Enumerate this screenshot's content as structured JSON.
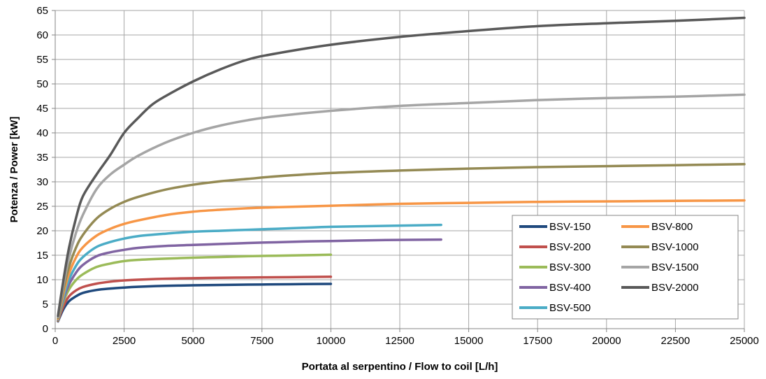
{
  "chart_data": {
    "type": "line",
    "title": "",
    "xlabel": "Portata al serpentino / Flow to coil [L/h]",
    "ylabel": "Potenza / Power [kW]",
    "xlim": [
      0,
      25000
    ],
    "ylim": [
      0,
      65
    ],
    "x_ticks": [
      0,
      2500,
      5000,
      7500,
      10000,
      12500,
      15000,
      17500,
      20000,
      22500,
      25000
    ],
    "y_ticks": [
      0,
      5,
      10,
      15,
      20,
      25,
      30,
      35,
      40,
      45,
      50,
      55,
      60,
      65
    ],
    "grid": true,
    "legend_position": "bottom-right",
    "legend_columns": 2,
    "series": [
      {
        "name": "BSV-150",
        "color": "#1f497d",
        "points": [
          [
            100,
            1.5
          ],
          [
            300,
            4.0
          ],
          [
            500,
            5.6
          ],
          [
            750,
            6.6
          ],
          [
            1000,
            7.3
          ],
          [
            1500,
            7.9
          ],
          [
            2000,
            8.2
          ],
          [
            2500,
            8.4
          ],
          [
            3000,
            8.55
          ],
          [
            4000,
            8.75
          ],
          [
            5000,
            8.85
          ],
          [
            6000,
            8.93
          ],
          [
            7000,
            9.0
          ],
          [
            8000,
            9.05
          ],
          [
            9000,
            9.1
          ],
          [
            10000,
            9.15
          ]
        ]
      },
      {
        "name": "BSV-200",
        "color": "#c0504d",
        "points": [
          [
            100,
            1.6
          ],
          [
            300,
            4.6
          ],
          [
            500,
            6.6
          ],
          [
            750,
            7.8
          ],
          [
            1000,
            8.5
          ],
          [
            1500,
            9.2
          ],
          [
            2000,
            9.6
          ],
          [
            2500,
            9.85
          ],
          [
            3000,
            10.0
          ],
          [
            4000,
            10.2
          ],
          [
            5000,
            10.3
          ],
          [
            6000,
            10.4
          ],
          [
            7000,
            10.45
          ],
          [
            8000,
            10.5
          ],
          [
            9000,
            10.55
          ],
          [
            10000,
            10.6
          ]
        ]
      },
      {
        "name": "BSV-300",
        "color": "#9bbb59",
        "points": [
          [
            100,
            1.7
          ],
          [
            300,
            5.5
          ],
          [
            500,
            8.0
          ],
          [
            750,
            9.9
          ],
          [
            1000,
            11.1
          ],
          [
            1500,
            12.6
          ],
          [
            2000,
            13.3
          ],
          [
            2500,
            13.8
          ],
          [
            3000,
            14.05
          ],
          [
            4000,
            14.3
          ],
          [
            5000,
            14.5
          ],
          [
            6000,
            14.65
          ],
          [
            7000,
            14.8
          ],
          [
            8000,
            14.9
          ],
          [
            9000,
            15.0
          ],
          [
            10000,
            15.1
          ]
        ]
      },
      {
        "name": "BSV-400",
        "color": "#8064a2",
        "points": [
          [
            100,
            1.8
          ],
          [
            300,
            6.0
          ],
          [
            500,
            9.0
          ],
          [
            750,
            11.4
          ],
          [
            1000,
            13.0
          ],
          [
            1500,
            14.8
          ],
          [
            2000,
            15.6
          ],
          [
            2500,
            16.1
          ],
          [
            3000,
            16.5
          ],
          [
            4000,
            16.9
          ],
          [
            5000,
            17.1
          ],
          [
            6000,
            17.3
          ],
          [
            7000,
            17.5
          ],
          [
            8000,
            17.65
          ],
          [
            9000,
            17.8
          ],
          [
            10000,
            17.9
          ],
          [
            12000,
            18.1
          ],
          [
            14000,
            18.2
          ]
        ]
      },
      {
        "name": "BSV-500",
        "color": "#4bacc6",
        "points": [
          [
            100,
            1.9
          ],
          [
            300,
            6.5
          ],
          [
            500,
            10.0
          ],
          [
            750,
            12.8
          ],
          [
            1000,
            14.6
          ],
          [
            1500,
            16.7
          ],
          [
            2000,
            17.7
          ],
          [
            2500,
            18.4
          ],
          [
            3000,
            18.9
          ],
          [
            4000,
            19.4
          ],
          [
            5000,
            19.8
          ],
          [
            6000,
            20.0
          ],
          [
            7000,
            20.2
          ],
          [
            8000,
            20.4
          ],
          [
            9000,
            20.6
          ],
          [
            10000,
            20.8
          ],
          [
            12000,
            21.0
          ],
          [
            14000,
            21.2
          ]
        ]
      },
      {
        "name": "BSV-800",
        "color": "#f79646",
        "points": [
          [
            100,
            2.0
          ],
          [
            300,
            7.2
          ],
          [
            500,
            11.2
          ],
          [
            750,
            14.5
          ],
          [
            1000,
            16.6
          ],
          [
            1500,
            19.0
          ],
          [
            2000,
            20.4
          ],
          [
            2500,
            21.4
          ],
          [
            3000,
            22.1
          ],
          [
            4000,
            23.2
          ],
          [
            5000,
            23.9
          ],
          [
            6000,
            24.3
          ],
          [
            7000,
            24.6
          ],
          [
            8000,
            24.8
          ],
          [
            10000,
            25.1
          ],
          [
            12500,
            25.5
          ],
          [
            15000,
            25.7
          ],
          [
            17500,
            25.9
          ],
          [
            20000,
            26.0
          ],
          [
            22500,
            26.1
          ],
          [
            25000,
            26.2
          ]
        ]
      },
      {
        "name": "BSV-1000",
        "color": "#948a54",
        "points": [
          [
            100,
            2.2
          ],
          [
            300,
            8.0
          ],
          [
            500,
            12.6
          ],
          [
            750,
            16.5
          ],
          [
            1000,
            19.1
          ],
          [
            1500,
            22.5
          ],
          [
            2000,
            24.5
          ],
          [
            2500,
            25.9
          ],
          [
            3000,
            26.9
          ],
          [
            4000,
            28.4
          ],
          [
            5000,
            29.4
          ],
          [
            6000,
            30.1
          ],
          [
            7000,
            30.6
          ],
          [
            8000,
            31.1
          ],
          [
            10000,
            31.8
          ],
          [
            12500,
            32.3
          ],
          [
            15000,
            32.7
          ],
          [
            17500,
            33.0
          ],
          [
            20000,
            33.2
          ],
          [
            22500,
            33.4
          ],
          [
            25000,
            33.6
          ]
        ]
      },
      {
        "name": "BSV-1500",
        "color": "#a5a5a5",
        "points": [
          [
            100,
            2.4
          ],
          [
            300,
            9.0
          ],
          [
            500,
            14.5
          ],
          [
            750,
            19.5
          ],
          [
            1000,
            23.2
          ],
          [
            1500,
            28.5
          ],
          [
            2000,
            31.5
          ],
          [
            2500,
            33.5
          ],
          [
            3000,
            35.3
          ],
          [
            4000,
            38.0
          ],
          [
            5000,
            40.0
          ],
          [
            6000,
            41.5
          ],
          [
            7000,
            42.6
          ],
          [
            8000,
            43.4
          ],
          [
            10000,
            44.5
          ],
          [
            12500,
            45.5
          ],
          [
            15000,
            46.1
          ],
          [
            17500,
            46.7
          ],
          [
            20000,
            47.1
          ],
          [
            22500,
            47.4
          ],
          [
            25000,
            47.8
          ]
        ]
      },
      {
        "name": "BSV-2000",
        "color": "#595959",
        "points": [
          [
            100,
            2.6
          ],
          [
            300,
            10.0
          ],
          [
            500,
            16.5
          ],
          [
            750,
            22.5
          ],
          [
            1000,
            27.0
          ],
          [
            1500,
            31.5
          ],
          [
            2000,
            35.5
          ],
          [
            2500,
            40.0
          ],
          [
            3000,
            43.0
          ],
          [
            3500,
            45.7
          ],
          [
            4000,
            47.5
          ],
          [
            5000,
            50.5
          ],
          [
            6000,
            53.0
          ],
          [
            7000,
            55.0
          ],
          [
            8000,
            56.2
          ],
          [
            10000,
            58.0
          ],
          [
            12500,
            59.6
          ],
          [
            15000,
            60.8
          ],
          [
            17500,
            61.8
          ],
          [
            20000,
            62.4
          ],
          [
            22500,
            62.9
          ],
          [
            25000,
            63.5
          ]
        ]
      }
    ]
  }
}
